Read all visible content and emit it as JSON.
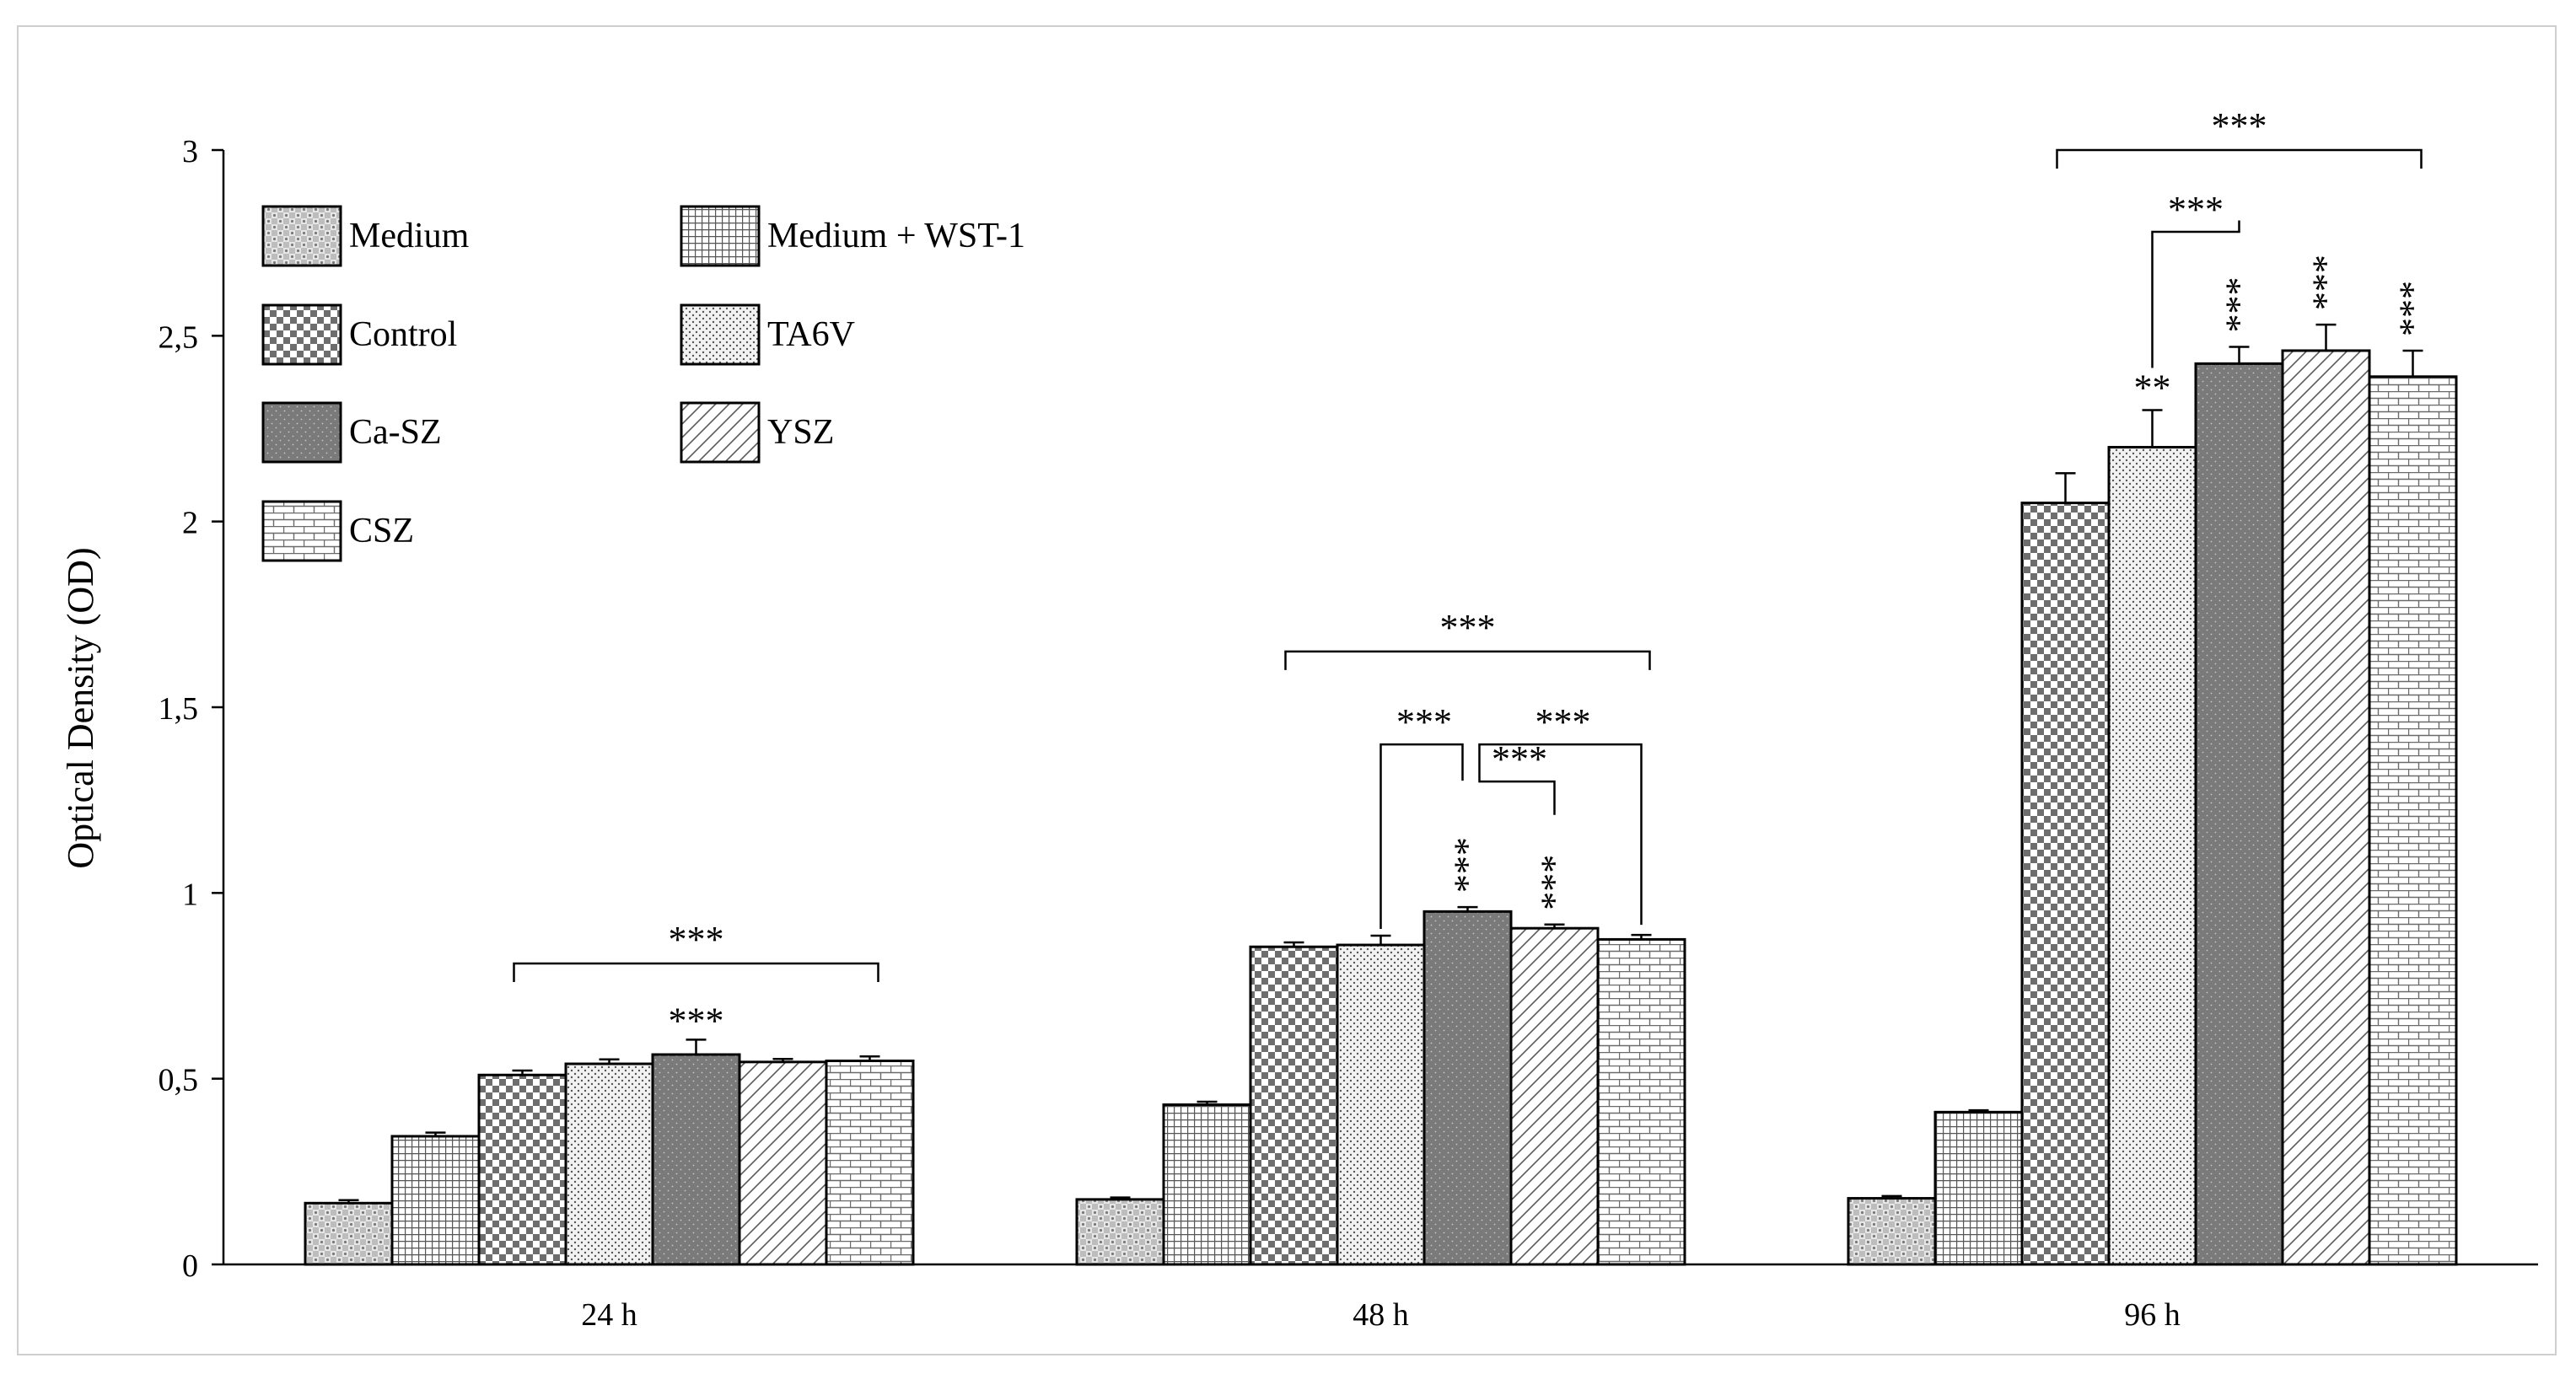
{
  "chart_data": {
    "type": "bar",
    "ylabel": "Optical Density (OD)",
    "ylim": [
      0,
      3
    ],
    "yticks": [
      "0",
      "0,5",
      "1",
      "1,5",
      "2",
      "2,5",
      "3"
    ],
    "categories": [
      "24 h",
      "48 h",
      "96 h"
    ],
    "grid": false,
    "legend_position": "top-left",
    "series": [
      {
        "name": "Medium",
        "pattern": "diamond-check",
        "values": [
          0.165,
          0.175,
          0.178
        ],
        "errors": [
          0.008,
          0.005,
          0.006
        ]
      },
      {
        "name": "Medium + WST-1",
        "pattern": "fine-grid",
        "values": [
          0.345,
          0.43,
          0.41
        ],
        "errors": [
          0.01,
          0.008,
          0.005
        ]
      },
      {
        "name": "Control",
        "pattern": "checker",
        "values": [
          0.51,
          0.855,
          2.05
        ],
        "errors": [
          0.012,
          0.012,
          0.08
        ]
      },
      {
        "name": "TA6V",
        "pattern": "dots",
        "values": [
          0.54,
          0.86,
          2.2
        ],
        "errors": [
          0.012,
          0.025,
          0.1
        ]
      },
      {
        "name": "Ca-SZ",
        "pattern": "dark-dots",
        "values": [
          0.565,
          0.95,
          2.425
        ],
        "errors": [
          0.04,
          0.012,
          0.045
        ]
      },
      {
        "name": "YSZ",
        "pattern": "diagonal",
        "values": [
          0.545,
          0.905,
          2.46
        ],
        "errors": [
          0.008,
          0.01,
          0.07
        ]
      },
      {
        "name": "CSZ",
        "pattern": "brick",
        "values": [
          0.548,
          0.875,
          2.39
        ],
        "errors": [
          0.012,
          0.012,
          0.07
        ]
      }
    ],
    "annotations": {
      "group_bracket_label": "***",
      "bar_marks": [
        {
          "group": 0,
          "series": 4,
          "text": "***"
        },
        {
          "group": 1,
          "series": 4,
          "text": "***"
        },
        {
          "group": 1,
          "series": 5,
          "text": "***"
        },
        {
          "group": 2,
          "series": 3,
          "text": "**"
        },
        {
          "group": 2,
          "series": 4,
          "text": "***"
        },
        {
          "group": 2,
          "series": 5,
          "text": "***"
        },
        {
          "group": 2,
          "series": 6,
          "text": "***"
        }
      ],
      "pair_brackets": [
        {
          "group": 1,
          "from": 3,
          "to": 4,
          "text": "***"
        },
        {
          "group": 1,
          "from": 4,
          "to": 5,
          "text": "***"
        },
        {
          "group": 1,
          "from": 4,
          "to": 6,
          "text": "***"
        },
        {
          "group": 2,
          "from": 3,
          "to": 4,
          "text": "***"
        }
      ]
    }
  }
}
